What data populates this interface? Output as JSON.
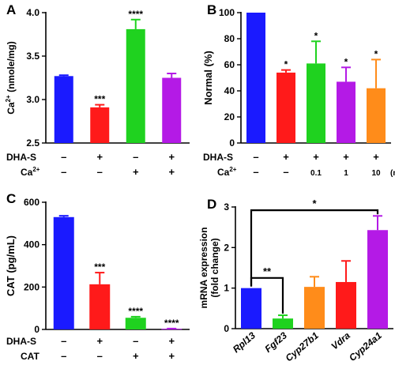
{
  "chart_data": [
    {
      "panel": "A",
      "type": "bar",
      "ylabel": "Ca²⁺ (nmole/mg)",
      "ylabel_main": "Ca",
      "ylabel_sup": "2+",
      "ylabel_rest": " (nmole/mg)",
      "ylim": [
        2.5,
        4.0
      ],
      "yticks": [
        "2.5",
        "3.0",
        "3.5",
        "4.0"
      ],
      "ytick_values": [
        2.5,
        3.0,
        3.5,
        4.0
      ],
      "values": [
        3.27,
        2.91,
        3.81,
        3.25
      ],
      "errors": [
        0.01,
        0.03,
        0.11,
        0.05
      ],
      "colors": [
        "#1a1aff",
        "#ff1a1a",
        "#1fd21f",
        "#b41ae6"
      ],
      "significance": [
        "",
        "***",
        "****",
        ""
      ],
      "conditions": [
        {
          "label": "DHA-S",
          "marks": [
            "–",
            "+",
            "–",
            "+"
          ]
        },
        {
          "label": "Ca²⁺",
          "label_main": "Ca",
          "label_sup": "2+",
          "marks": [
            "–",
            "–",
            "+",
            "+"
          ]
        }
      ]
    },
    {
      "panel": "B",
      "type": "bar",
      "ylabel": "Normal (%)",
      "ylim": [
        0,
        100
      ],
      "yticks": [
        "0",
        "20",
        "40",
        "60",
        "80",
        "100"
      ],
      "ytick_values": [
        0,
        20,
        40,
        60,
        80,
        100
      ],
      "values": [
        100,
        54,
        61,
        47,
        42
      ],
      "errors": [
        0,
        2,
        17,
        11,
        22
      ],
      "colors": [
        "#1a1aff",
        "#ff1a1a",
        "#1fd21f",
        "#b41ae6",
        "#ff8c1a"
      ],
      "significance": [
        "",
        "*",
        "*",
        "*",
        "*"
      ],
      "conditions": [
        {
          "label": "DHA-S",
          "marks": [
            "–",
            "+",
            "+",
            "+",
            "+"
          ]
        },
        {
          "label": "Ca²⁺",
          "label_main": "Ca",
          "label_sup": "2+",
          "marks": [
            "–",
            "–",
            "0.1",
            "1",
            "10"
          ],
          "unit": "(mM)"
        }
      ]
    },
    {
      "panel": "C",
      "type": "bar",
      "ylabel": "CAT (pg/mL)",
      "ylim": [
        0,
        600
      ],
      "yticks": [
        "0",
        "200",
        "400",
        "600"
      ],
      "ytick_values": [
        0,
        200,
        400,
        600
      ],
      "values": [
        530,
        213,
        55,
        3
      ],
      "errors": [
        6,
        55,
        5,
        1
      ],
      "colors": [
        "#1a1aff",
        "#ff1a1a",
        "#1fd21f",
        "#b41ae6"
      ],
      "significance": [
        "",
        "***",
        "****",
        "****"
      ],
      "conditions": [
        {
          "label": "DHA-S",
          "marks": [
            "–",
            "+",
            "–",
            "+"
          ]
        },
        {
          "label": "CAT",
          "marks": [
            "–",
            "–",
            "+",
            "+"
          ]
        }
      ]
    },
    {
      "panel": "D",
      "type": "bar",
      "ylabel": "mRNA expression (fold change)",
      "ylabel_line1": "mRNA expression",
      "ylabel_line2": "(fold change)",
      "ylim": [
        0,
        3
      ],
      "yticks": [
        "0",
        "1",
        "2",
        "3"
      ],
      "ytick_values": [
        0,
        1,
        2,
        3
      ],
      "categories": [
        "Rpl13",
        "Fgf23",
        "Cyp27b1",
        "Vdra",
        "Cyp24a1"
      ],
      "values": [
        1.0,
        0.25,
        1.03,
        1.15,
        2.43
      ],
      "errors": [
        0,
        0.08,
        0.25,
        0.52,
        0.35
      ],
      "colors": [
        "#1a1aff",
        "#1fd21f",
        "#ff8c1a",
        "#ff1a1a",
        "#b41ae6"
      ],
      "brackets": [
        {
          "from": 0,
          "to": 1,
          "label": "**"
        },
        {
          "from": 0,
          "to": 4,
          "label": "*"
        }
      ]
    }
  ]
}
